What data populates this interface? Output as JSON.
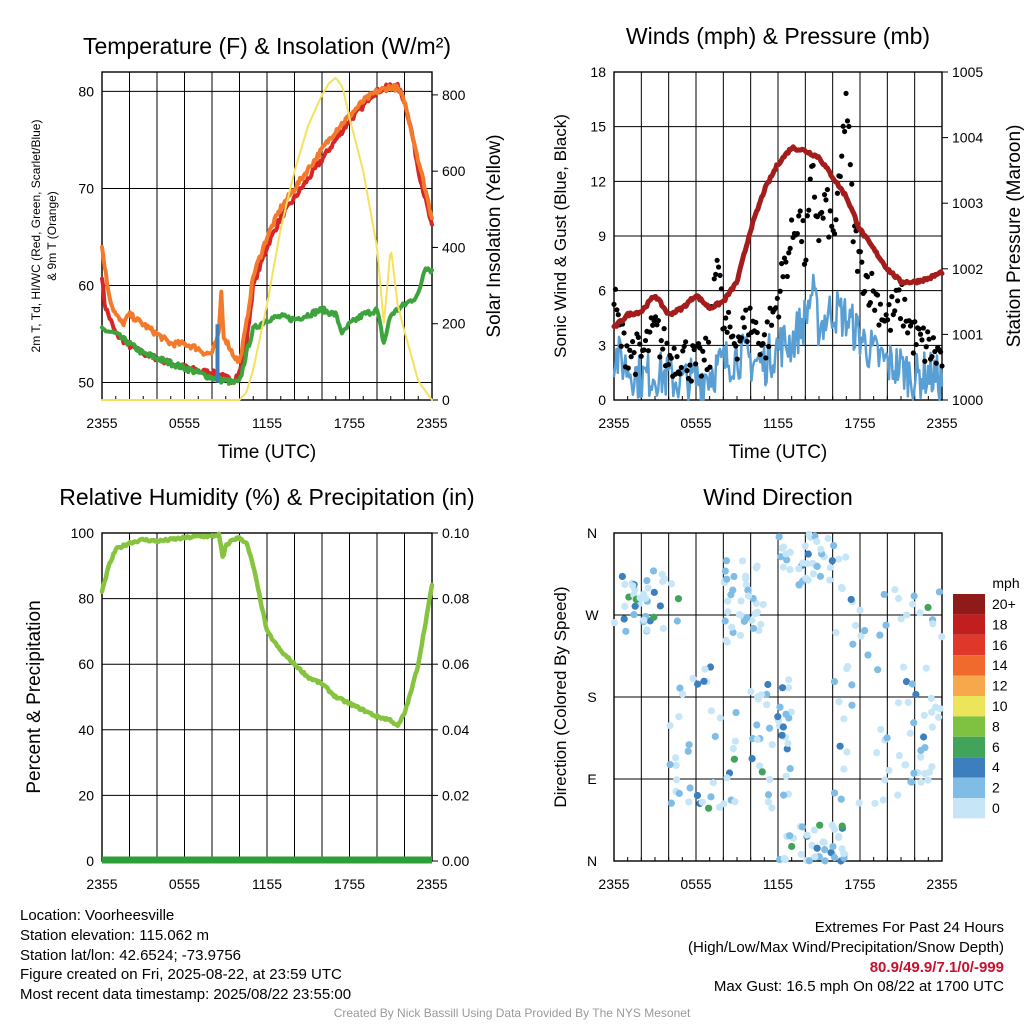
{
  "colors": {
    "temp": "#d62728",
    "dew": "#3da33d",
    "hi": "#f47a2b",
    "nine_m": "#f47a2b",
    "solar": "#f6e05c",
    "wind": "#5a9fd4",
    "gust": "#000000",
    "pressure": "#a31d1d",
    "rh": "#86c440",
    "precip": "#2e9e3a"
  },
  "chart_data": [
    {
      "id": "temperature",
      "type": "line",
      "title": "Temperature (F) & Insolation (W/m²)",
      "xlabel": "Time (UTC)",
      "ylabel_left": [
        "2m T, Td, HI/WC (Red, Green, Scarlet/Blue)",
        "& 9m T (Orange)"
      ],
      "ylabel_right": "Solar Insolation (Yellow)",
      "x_ticks": [
        "2355",
        "0555",
        "1155",
        "1755",
        "2355"
      ],
      "x_range": [
        0,
        24
      ],
      "ylim_left": [
        48.2,
        82
      ],
      "yticks_left": [
        50,
        60,
        70,
        80
      ],
      "ylim_right": [
        0,
        860
      ],
      "yticks_right": [
        0,
        200,
        400,
        600,
        800
      ],
      "grid": true,
      "series": [
        {
          "name": "2m T",
          "color_key": "temp",
          "axis": "left",
          "x": [
            0,
            0.2,
            1,
            2,
            3,
            4,
            5,
            6,
            7,
            8,
            8.5,
            9,
            9.5,
            10,
            10.5,
            11,
            12,
            13,
            14,
            15,
            16,
            17,
            18,
            19,
            19.5,
            20,
            20.5,
            21,
            21.5,
            22,
            22.5,
            23,
            23.5,
            24
          ],
          "y": [
            61,
            58,
            55,
            53.8,
            53,
            52.5,
            52,
            51.6,
            51.2,
            51,
            50.8,
            50.5,
            50.2,
            51,
            54,
            60,
            64,
            67,
            69,
            71,
            73,
            75,
            77,
            78.5,
            79.5,
            80,
            80.3,
            80.6,
            80.5,
            79,
            76,
            72,
            69,
            66
          ]
        },
        {
          "name": "Td",
          "color_key": "dew",
          "axis": "left",
          "x": [
            0,
            1,
            2,
            3,
            4,
            5,
            6,
            7,
            8,
            8.5,
            9,
            9.5,
            10,
            10.5,
            11,
            12,
            13,
            14,
            15,
            16,
            17,
            17.5,
            18,
            19,
            20,
            20.5,
            21,
            22,
            23,
            23.5,
            24
          ],
          "y": [
            55.5,
            55,
            54,
            53,
            52.5,
            52,
            51.5,
            51,
            50.5,
            50.3,
            50.2,
            50,
            50,
            53,
            55.5,
            56.5,
            56.8,
            56.5,
            57,
            57.5,
            57,
            55,
            56,
            57,
            57.5,
            54,
            57,
            58,
            59,
            62,
            61.5
          ]
        },
        {
          "name": "HI/WC",
          "color_key": "hi",
          "axis": "left",
          "x": [
            0,
            0.1,
            0.4,
            0.7,
            1,
            1.5,
            2,
            3,
            4,
            5,
            6,
            7,
            7.5,
            8,
            8.5,
            8.7,
            8.8,
            9.5,
            10,
            10.5,
            11,
            12,
            13,
            14,
            15,
            16,
            17,
            18,
            19,
            19.5,
            20,
            20.5,
            21,
            21.5,
            22,
            22.5,
            23,
            23.5,
            24
          ],
          "y": [
            64,
            63,
            60,
            58,
            57,
            56,
            57,
            56,
            55,
            54,
            54,
            53.5,
            53,
            53,
            55,
            60,
            55,
            53,
            52,
            56,
            61,
            65,
            68,
            70,
            72,
            74,
            76,
            77.5,
            79,
            79.5,
            80,
            80.2,
            80.5,
            80.3,
            79,
            76,
            73,
            70,
            67
          ]
        },
        {
          "name": "Solar Insolation",
          "color_key": "solar",
          "axis": "right",
          "x": [
            0,
            10,
            10.5,
            11,
            12,
            13,
            14,
            15,
            16,
            16.5,
            17,
            17.5,
            18,
            19,
            20,
            20.5,
            21,
            21.5,
            22,
            23,
            24
          ],
          "y": [
            0,
            0,
            20,
            80,
            250,
            450,
            600,
            720,
            800,
            830,
            845,
            820,
            740,
            600,
            400,
            200,
            400,
            250,
            180,
            50,
            0
          ]
        }
      ]
    },
    {
      "id": "winds",
      "type": "line",
      "title": "Winds (mph) & Pressure (mb)",
      "xlabel": "Time (UTC)",
      "ylabel_left": "Sonic Wind & Gust (Blue, Black)",
      "ylabel_right": "Station Pressure (Maroon)",
      "x_ticks": [
        "2355",
        "0555",
        "1155",
        "1755",
        "2355"
      ],
      "x_range": [
        0,
        24
      ],
      "ylim_left": [
        0,
        18
      ],
      "yticks_left": [
        0,
        3,
        6,
        9,
        12,
        15,
        18
      ],
      "ylim_right": [
        1000,
        1005
      ],
      "yticks_right": [
        1000,
        1001,
        1002,
        1003,
        1004,
        1005
      ],
      "grid": true,
      "series": [
        {
          "name": "Sonic Wind",
          "color_key": "wind",
          "axis": "left",
          "x": [
            0,
            1,
            2,
            3,
            4,
            5,
            6,
            7,
            8,
            9,
            10,
            11,
            12,
            13,
            14,
            14.5,
            15,
            16,
            17,
            18,
            19,
            20,
            21,
            22,
            23,
            24
          ],
          "y": [
            2.5,
            1.8,
            1.2,
            1.5,
            1.2,
            1.0,
            1.1,
            1.5,
            2.0,
            2.5,
            2.2,
            2.0,
            3.0,
            3.2,
            4.5,
            6.0,
            4.0,
            5.0,
            4.5,
            3.5,
            2.5,
            2.0,
            1.8,
            1.2,
            1.5,
            1.0
          ]
        },
        {
          "name": "Gust",
          "color_key": "gust",
          "axis": "left",
          "x": [
            0,
            0.5,
            1,
            2,
            3,
            4,
            5,
            6,
            7,
            7.5,
            8,
            9,
            10,
            11,
            12,
            12.5,
            13,
            13.5,
            14,
            14.5,
            15,
            15.5,
            16,
            16.5,
            17,
            17.5,
            18,
            19,
            20,
            21,
            22,
            23,
            24
          ],
          "y": [
            5.2,
            3.0,
            2.5,
            2.0,
            3.5,
            2.0,
            2.2,
            1.5,
            2.0,
            8.4,
            3.5,
            3.0,
            4.0,
            2.6,
            5.2,
            7.0,
            8.4,
            10.0,
            7.5,
            12.0,
            9.0,
            10.5,
            8.5,
            11.0,
            16.5,
            9.0,
            7.0,
            5.5,
            4.0,
            5.0,
            3.0,
            2.5,
            2.0
          ]
        },
        {
          "name": "Station Pressure",
          "color_key": "pressure",
          "axis": "right",
          "x": [
            0,
            1,
            2,
            3,
            4,
            5,
            6,
            7,
            8,
            9,
            10,
            11,
            12,
            13,
            14,
            15,
            16,
            17,
            18,
            19,
            20,
            21,
            22,
            23,
            24
          ],
          "y": [
            1001.1,
            1001.3,
            1001.35,
            1001.6,
            1001.3,
            1001.4,
            1001.6,
            1001.4,
            1001.5,
            1001.8,
            1002.6,
            1003.2,
            1003.6,
            1003.85,
            1003.8,
            1003.7,
            1003.4,
            1003.1,
            1002.6,
            1002.3,
            1002.0,
            1001.8,
            1001.8,
            1001.85,
            1001.95
          ]
        }
      ]
    },
    {
      "id": "humidity",
      "type": "line",
      "title": "Relative Humidity (%) & Precipitation (in)",
      "xlabel": "",
      "ylabel_left": "Percent & Precipitation",
      "x_ticks": [
        "2355",
        "0555",
        "1155",
        "1755",
        "2355"
      ],
      "x_range": [
        0,
        24
      ],
      "ylim_left": [
        0,
        100
      ],
      "yticks_left": [
        0,
        20,
        40,
        60,
        80,
        100
      ],
      "ylim_right": [
        0,
        0.1
      ],
      "yticks_right": [
        "0.00",
        "0.02",
        "0.04",
        "0.06",
        "0.08",
        "0.10"
      ],
      "grid": true,
      "series": [
        {
          "name": "Relative Humidity",
          "color_key": "rh",
          "axis": "left",
          "x": [
            0,
            0.5,
            1,
            2,
            3,
            4,
            5,
            6,
            7,
            8,
            8.5,
            8.8,
            9,
            9.5,
            10,
            10.5,
            11,
            11.5,
            12,
            13,
            14,
            15,
            16,
            17,
            18,
            19,
            20,
            21,
            21.5,
            22,
            22.5,
            23,
            23.5,
            24
          ],
          "y": [
            82,
            90,
            95,
            97,
            98,
            97.5,
            98,
            98.5,
            99,
            99,
            99.5,
            92,
            96,
            98,
            98.5,
            97,
            90,
            80,
            70,
            64,
            60,
            56,
            54,
            50,
            48,
            46,
            44,
            43,
            41,
            45,
            52,
            60,
            72,
            84
          ]
        },
        {
          "name": "Precipitation",
          "color_key": "precip",
          "axis": "right",
          "x": [
            0,
            24
          ],
          "y": [
            0,
            0
          ]
        }
      ]
    },
    {
      "id": "wind_direction",
      "type": "scatter",
      "title": "Wind Direction",
      "ylabel_left": "Direction (Colored By Speed)",
      "x_ticks": [
        "2355",
        "0555",
        "1155",
        "1755",
        "2355"
      ],
      "x_range": [
        0,
        24
      ],
      "y_ticks": [
        "N",
        "E",
        "S",
        "W",
        "N"
      ],
      "ylim_left": [
        0,
        360
      ],
      "grid": true,
      "legend": {
        "title": "mph",
        "labels": [
          "20+",
          "18",
          "16",
          "14",
          "12",
          "10",
          "8",
          "6",
          "4",
          "2",
          "0"
        ],
        "colors": [
          "#8e1a1a",
          "#c11f1f",
          "#e0372b",
          "#ef6a2c",
          "#f6a84a",
          "#ece45a",
          "#7fc242",
          "#42a35a",
          "#3d7fbd",
          "#7fbde6",
          "#c6e6f7"
        ]
      }
    }
  ],
  "info_left": [
    "Location: Voorheesville",
    "Station elevation: 115.062 m",
    "Station lat/lon: 42.6524; -73.9756",
    "Figure created on Fri, 2025-08-22, at 23:59 UTC",
    "Most recent data timestamp: 2025/08/22 23:55:00"
  ],
  "info_right": {
    "line1": "Extremes For Past 24 Hours",
    "line2": "(High/Low/Max Wind/Precipitation/Snow Depth)",
    "line3": "80.9/49.9/7.1/0/-999",
    "line4": "Max Gust: 16.5 mph On 08/22 at 1700 UTC"
  },
  "credit": "Created By Nick Bassill Using Data Provided By The NYS Mesonet"
}
